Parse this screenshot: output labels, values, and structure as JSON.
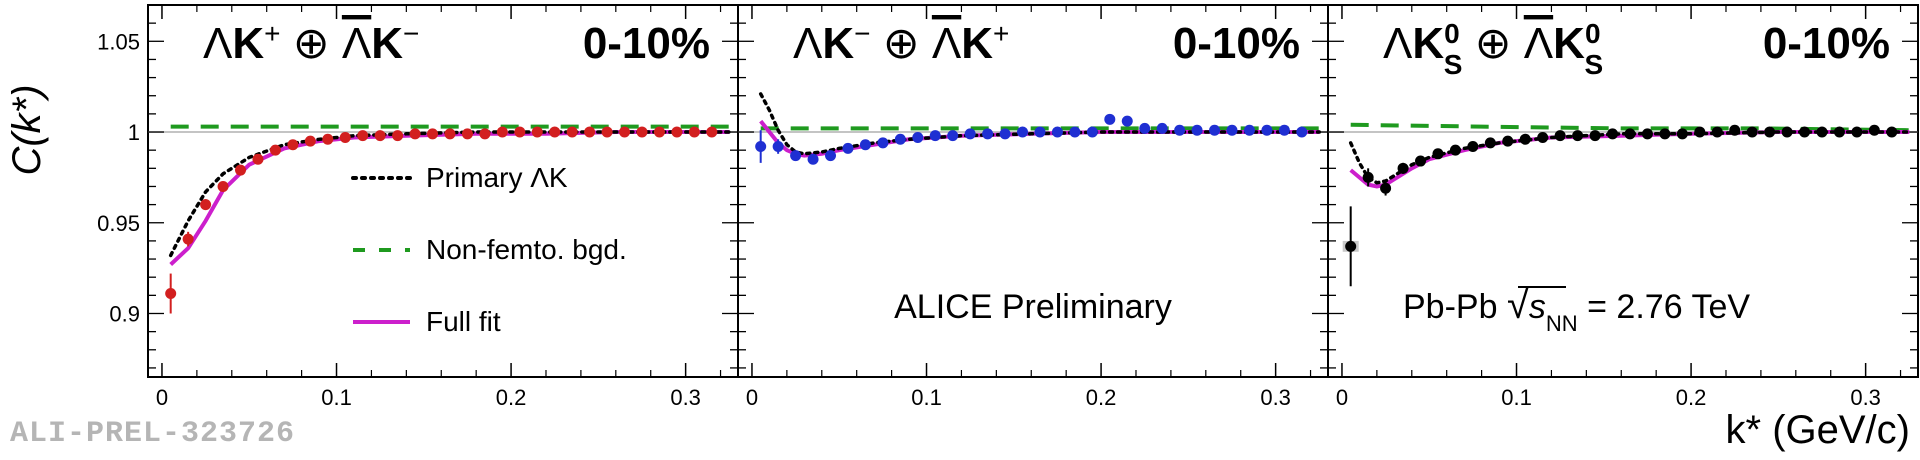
{
  "figure": {
    "ylabel": "C(k*)",
    "xlabel": "k* (GeV/c)",
    "watermark": "ALI-PREL-323726",
    "colors": {
      "primary": "#000000",
      "bgd": "#1f9a1f",
      "fit": "#cc1fcc"
    }
  },
  "chart_data": [
    {
      "type": "line",
      "panel": "left",
      "title": "ΛK⁺ ⊕ Λ̄K⁻",
      "centrality": "0-10%",
      "xlim": [
        -0.008,
        0.33
      ],
      "ylim": [
        0.865,
        1.07
      ],
      "xticks": [
        0,
        0.1,
        0.2,
        0.3
      ],
      "xtick_labels": [
        "0",
        "0.1",
        "0.2",
        "0.3"
      ],
      "yticks": [
        0.9,
        0.95,
        1,
        1.05
      ],
      "ytick_labels": [
        "0.9",
        "0.95",
        "1",
        "1.05"
      ],
      "data_color": "#d21f1f",
      "data": {
        "x": [
          0.005,
          0.015,
          0.025,
          0.035,
          0.045,
          0.055,
          0.065,
          0.075,
          0.085,
          0.095,
          0.105,
          0.115,
          0.125,
          0.135,
          0.145,
          0.155,
          0.165,
          0.175,
          0.185,
          0.195,
          0.205,
          0.215,
          0.225,
          0.235,
          0.245,
          0.255,
          0.265,
          0.275,
          0.285,
          0.295,
          0.305,
          0.315
        ],
        "y": [
          0.911,
          0.941,
          0.96,
          0.97,
          0.979,
          0.985,
          0.99,
          0.993,
          0.995,
          0.996,
          0.997,
          0.998,
          0.998,
          0.998,
          0.999,
          0.999,
          0.999,
          0.999,
          0.999,
          1.0,
          1.0,
          1.0,
          1.0,
          1.0,
          1.0,
          1.0,
          1.0,
          1.0,
          1.0,
          1.0,
          1.0,
          1.0
        ],
        "yerr": [
          0.011,
          0.004,
          0.003,
          0.002,
          0.002,
          0.002,
          0.001,
          0.001,
          0.001,
          0.001,
          0.001,
          0.001,
          0.001,
          0.001,
          0.001,
          0.001,
          0.001,
          0.001,
          0.001,
          0.001,
          0.001,
          0.001,
          0.001,
          0.001,
          0.001,
          0.001,
          0.001,
          0.001,
          0.001,
          0.001,
          0.001,
          0.001
        ]
      },
      "series": [
        {
          "name": "Primary ΛK",
          "style": "dotted",
          "color": "#000000",
          "x": [
            0.005,
            0.015,
            0.025,
            0.035,
            0.05,
            0.07,
            0.09,
            0.11,
            0.14,
            0.18,
            0.22,
            0.26,
            0.3,
            0.325
          ],
          "y": [
            0.932,
            0.951,
            0.967,
            0.977,
            0.986,
            0.993,
            0.996,
            0.998,
            0.999,
            1.0,
            1.0,
            1.0,
            1.0,
            1.0
          ]
        },
        {
          "name": "Non-femto. bgd.",
          "style": "dashed",
          "color": "#1f9a1f",
          "x": [
            0.005,
            0.08,
            0.16,
            0.24,
            0.325
          ],
          "y": [
            1.003,
            1.003,
            1.003,
            1.003,
            1.003
          ]
        },
        {
          "name": "Full fit",
          "style": "solid",
          "color": "#cc1fcc",
          "x": [
            0.005,
            0.015,
            0.025,
            0.035,
            0.05,
            0.07,
            0.09,
            0.11,
            0.14,
            0.18,
            0.22,
            0.26,
            0.3,
            0.325
          ],
          "y": [
            0.927,
            0.936,
            0.951,
            0.968,
            0.982,
            0.991,
            0.995,
            0.997,
            0.998,
            0.999,
            0.999,
            1.0,
            1.0,
            1.0
          ]
        }
      ],
      "legend": [
        {
          "label": "Primary ΛK",
          "style": "dotted",
          "color": "#000000"
        },
        {
          "label": "Non-femto. bgd.",
          "style": "dashed",
          "color": "#1f9a1f"
        },
        {
          "label": "Full fit",
          "style": "solid",
          "color": "#cc1fcc"
        }
      ],
      "legend_position": "center",
      "annotation": ""
    },
    {
      "type": "line",
      "panel": "middle",
      "title": "ΛK⁻ ⊕ Λ̄K⁺",
      "centrality": "0-10%",
      "xlim": [
        -0.008,
        0.33
      ],
      "ylim": [
        0.865,
        1.07
      ],
      "xticks": [
        0,
        0.1,
        0.2,
        0.3
      ],
      "xtick_labels": [
        "0",
        "0.1",
        "0.2",
        "0.3"
      ],
      "data_color": "#1f2fd2",
      "data": {
        "x": [
          0.005,
          0.015,
          0.025,
          0.035,
          0.045,
          0.055,
          0.065,
          0.075,
          0.085,
          0.095,
          0.105,
          0.115,
          0.125,
          0.135,
          0.145,
          0.155,
          0.165,
          0.175,
          0.185,
          0.195,
          0.205,
          0.215,
          0.225,
          0.235,
          0.245,
          0.255,
          0.265,
          0.275,
          0.285,
          0.295,
          0.305,
          0.315
        ],
        "y": [
          0.992,
          0.992,
          0.987,
          0.985,
          0.987,
          0.991,
          0.993,
          0.994,
          0.996,
          0.997,
          0.998,
          0.998,
          0.999,
          0.999,
          0.999,
          1.0,
          1.0,
          1.0,
          1.0,
          1.0,
          1.007,
          1.006,
          1.002,
          1.002,
          1.001,
          1.001,
          1.001,
          1.001,
          1.001,
          1.001,
          1.001,
          1.0
        ],
        "yerr": [
          0.009,
          0.004,
          0.002,
          0.002,
          0.002,
          0.001,
          0.001,
          0.001,
          0.001,
          0.001,
          0.001,
          0.001,
          0.001,
          0.001,
          0.001,
          0.001,
          0.001,
          0.001,
          0.001,
          0.001,
          0.001,
          0.001,
          0.001,
          0.001,
          0.001,
          0.001,
          0.001,
          0.001,
          0.001,
          0.001,
          0.001,
          0.001
        ]
      },
      "series": [
        {
          "name": "Primary ΛK",
          "style": "dotted",
          "color": "#000000",
          "x": [
            0.005,
            0.01,
            0.015,
            0.02,
            0.025,
            0.03,
            0.04,
            0.05,
            0.07,
            0.09,
            0.12,
            0.16,
            0.2,
            0.25,
            0.3,
            0.325
          ],
          "y": [
            1.021,
            1.012,
            1.001,
            0.993,
            0.989,
            0.988,
            0.989,
            0.991,
            0.994,
            0.996,
            0.998,
            0.999,
            1.0,
            1.0,
            1.0,
            1.0
          ]
        },
        {
          "name": "Non-femto. bgd.",
          "style": "dashed",
          "color": "#1f9a1f",
          "x": [
            0.005,
            0.08,
            0.16,
            0.24,
            0.325
          ],
          "y": [
            1.002,
            1.002,
            1.002,
            1.002,
            1.002
          ]
        },
        {
          "name": "Full fit",
          "style": "solid",
          "color": "#cc1fcc",
          "x": [
            0.005,
            0.01,
            0.015,
            0.02,
            0.025,
            0.03,
            0.04,
            0.05,
            0.07,
            0.09,
            0.12,
            0.16,
            0.2,
            0.25,
            0.3,
            0.325
          ],
          "y": [
            1.006,
            1.0,
            0.994,
            0.99,
            0.988,
            0.987,
            0.988,
            0.99,
            0.993,
            0.996,
            0.998,
            0.999,
            1.0,
            1.0,
            1.0,
            1.0
          ]
        }
      ],
      "annotation": "ALICE Preliminary"
    },
    {
      "type": "line",
      "panel": "right",
      "title": "ΛK⁰S ⊕ Λ̄K⁰S",
      "centrality": "0-10%",
      "xlim": [
        -0.008,
        0.33
      ],
      "ylim": [
        0.865,
        1.07
      ],
      "xticks": [
        0,
        0.1,
        0.2,
        0.3
      ],
      "xtick_labels": [
        "0",
        "0.1",
        "0.2",
        "0.3"
      ],
      "data_color": "#000000",
      "data": {
        "x": [
          0.005,
          0.015,
          0.025,
          0.035,
          0.045,
          0.055,
          0.065,
          0.075,
          0.085,
          0.095,
          0.105,
          0.115,
          0.125,
          0.135,
          0.145,
          0.155,
          0.165,
          0.175,
          0.185,
          0.195,
          0.205,
          0.215,
          0.225,
          0.235,
          0.245,
          0.255,
          0.265,
          0.275,
          0.285,
          0.295,
          0.305,
          0.315
        ],
        "y": [
          0.937,
          0.975,
          0.969,
          0.98,
          0.984,
          0.988,
          0.99,
          0.992,
          0.994,
          0.995,
          0.996,
          0.997,
          0.998,
          0.998,
          0.998,
          0.999,
          0.999,
          0.999,
          0.999,
          0.999,
          1.0,
          1.0,
          1.001,
          1.0,
          1.0,
          1.0,
          1.0,
          1.0,
          1.0,
          1.0,
          1.001,
          1.0
        ],
        "yerr": [
          0.022,
          0.005,
          0.004,
          0.003,
          0.002,
          0.002,
          0.002,
          0.002,
          0.001,
          0.001,
          0.001,
          0.001,
          0.001,
          0.001,
          0.001,
          0.001,
          0.001,
          0.001,
          0.001,
          0.001,
          0.001,
          0.001,
          0.001,
          0.001,
          0.001,
          0.001,
          0.001,
          0.001,
          0.001,
          0.001,
          0.001,
          0.001
        ]
      },
      "series": [
        {
          "name": "Primary ΛK",
          "style": "dotted",
          "color": "#000000",
          "x": [
            0.005,
            0.01,
            0.015,
            0.02,
            0.025,
            0.03,
            0.04,
            0.05,
            0.07,
            0.09,
            0.12,
            0.16,
            0.2,
            0.25,
            0.3,
            0.325
          ],
          "y": [
            0.994,
            0.983,
            0.975,
            0.972,
            0.973,
            0.976,
            0.982,
            0.986,
            0.991,
            0.994,
            0.997,
            0.999,
            0.999,
            1.0,
            1.0,
            1.0
          ]
        },
        {
          "name": "Non-femto. bgd.",
          "style": "dashed",
          "color": "#1f9a1f",
          "x": [
            0.005,
            0.08,
            0.16,
            0.24,
            0.325
          ],
          "y": [
            1.004,
            1.003,
            1.002,
            1.002,
            1.001
          ]
        },
        {
          "name": "Full fit",
          "style": "solid",
          "color": "#cc1fcc",
          "x": [
            0.005,
            0.01,
            0.015,
            0.02,
            0.025,
            0.03,
            0.04,
            0.05,
            0.07,
            0.09,
            0.12,
            0.16,
            0.2,
            0.25,
            0.3,
            0.325
          ],
          "y": [
            0.979,
            0.975,
            0.971,
            0.97,
            0.971,
            0.974,
            0.98,
            0.985,
            0.99,
            0.994,
            0.997,
            0.998,
            0.999,
            1.0,
            1.0,
            1.0
          ]
        }
      ],
      "annotation": "Pb-Pb √sNN = 2.76 TeV"
    }
  ]
}
